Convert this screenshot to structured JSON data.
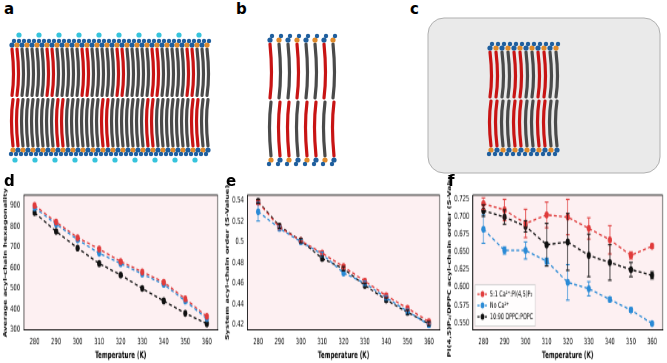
{
  "images": [
    {
      "title": "a"
    },
    {
      "title": "b"
    },
    {
      "title": "c"
    }
  ],
  "chart_data": [
    {
      "type": "line",
      "title": "d",
      "x_label": "Temperature (K)",
      "y_label": "Average acyl-chain hexagonality",
      "x": [
        280,
        290,
        300,
        310,
        320,
        330,
        340,
        350,
        360
      ],
      "xlim": [
        275,
        365
      ],
      "xticks": [
        280,
        290,
        300,
        310,
        320,
        330,
        340,
        350,
        360
      ],
      "ylim": [
        300,
        950
      ],
      "yticks": [
        300,
        400,
        500,
        600,
        700,
        800,
        900
      ],
      "grid": false,
      "marker": "circle",
      "line_style": "dashed",
      "series": [
        {
          "color": "#e03c3c",
          "values": [
            900,
            820,
            745,
            690,
            630,
            580,
            530,
            450,
            365
          ]
        },
        {
          "color": "#2b8bd6",
          "values": [
            890,
            810,
            735,
            670,
            620,
            570,
            520,
            440,
            355
          ]
        },
        {
          "color": "#111111",
          "values": [
            865,
            775,
            695,
            620,
            565,
            500,
            440,
            380,
            330
          ]
        }
      ]
    },
    {
      "type": "line",
      "title": "e",
      "x_label": "Temperature (K)",
      "y_label": "System acyl-chain order (S-Value)",
      "x": [
        280,
        290,
        300,
        310,
        320,
        330,
        340,
        350,
        360
      ],
      "xlim": [
        275,
        365
      ],
      "xticks": [
        280,
        290,
        300,
        310,
        320,
        330,
        340,
        350,
        360
      ],
      "ylim": [
        0.415,
        0.545
      ],
      "yticks": [
        0.42,
        0.44,
        0.46,
        0.48,
        0.5,
        0.52,
        0.54
      ],
      "grid": false,
      "marker": "circle",
      "line_style": "dashed",
      "series": [
        {
          "color": "#e03c3c",
          "values": [
            0.538,
            0.514,
            0.501,
            0.489,
            0.476,
            0.462,
            0.448,
            0.436,
            0.423
          ],
          "errors": [
            0.002,
            0.002,
            0.002,
            0.002,
            0.002,
            0.002,
            0.002,
            0.002,
            0.002
          ]
        },
        {
          "color": "#2b8bd6",
          "values": [
            0.529,
            0.513,
            0.5,
            0.488,
            0.47,
            0.46,
            0.446,
            0.433,
            0.42
          ],
          "errors": [
            0.009,
            0.002,
            0.002,
            0.002,
            0.002,
            0.002,
            0.002,
            0.002,
            0.002
          ]
        },
        {
          "color": "#111111",
          "values": [
            0.539,
            0.515,
            0.501,
            0.484,
            0.474,
            0.458,
            0.444,
            0.432,
            0.421
          ],
          "errors": [
            0.002,
            0.002,
            0.002,
            0.002,
            0.002,
            0.002,
            0.002,
            0.002,
            0.002
          ]
        }
      ]
    },
    {
      "type": "line",
      "title": "f",
      "x_label": "Temperature (K)",
      "y_label": "PI(4,5)P₂/DPPC acyl-chain order (S-Value)",
      "x": [
        280,
        290,
        300,
        310,
        320,
        330,
        340,
        350,
        360
      ],
      "xlim": [
        275,
        365
      ],
      "xticks": [
        280,
        290,
        300,
        310,
        320,
        330,
        340,
        350,
        360
      ],
      "ylim": [
        0.54,
        0.73
      ],
      "yticks": [
        {
          "value": 0.55,
          "label": "0.550"
        },
        {
          "value": 0.575,
          "label": "0.575"
        },
        {
          "value": 0.6,
          "label": "0.600"
        },
        {
          "value": 0.625,
          "label": "0.625"
        },
        {
          "value": 0.65,
          "label": "0.650"
        },
        {
          "value": 0.675,
          "label": "0.675"
        },
        {
          "value": 0.7,
          "label": "0.700"
        },
        {
          "value": 0.725,
          "label": "0.725"
        }
      ],
      "grid": false,
      "marker": "circle",
      "line_style": "dashed",
      "legend": "lower left",
      "series": [
        {
          "name": "5:1 Ca²⁺:PI(4,5)P₂",
          "color": "#e03c3c",
          "values": [
            0.718,
            0.709,
            0.69,
            0.702,
            0.699,
            0.683,
            0.667,
            0.645,
            0.658
          ],
          "errors": [
            0.008,
            0.015,
            0.02,
            0.018,
            0.025,
            0.015,
            0.02,
            0.005,
            0.003
          ]
        },
        {
          "name": "No Ca²⁺",
          "color": "#2b8bd6",
          "values": [
            0.682,
            0.652,
            0.652,
            0.637,
            0.607,
            0.598,
            0.583,
            0.568,
            0.549
          ],
          "errors": [
            0.02,
            0.005,
            0.012,
            0.004,
            0.025,
            0.01,
            0.003,
            0.003,
            0.002
          ]
        },
        {
          "name": "10:90 DPPC:POPC",
          "color": "#111111",
          "values": [
            0.708,
            0.699,
            0.686,
            0.66,
            0.664,
            0.645,
            0.635,
            0.625,
            0.617
          ],
          "errors": [
            0.008,
            0.01,
            0.008,
            0.03,
            0.04,
            0.03,
            0.025,
            0.01,
            0.005
          ]
        }
      ]
    }
  ]
}
